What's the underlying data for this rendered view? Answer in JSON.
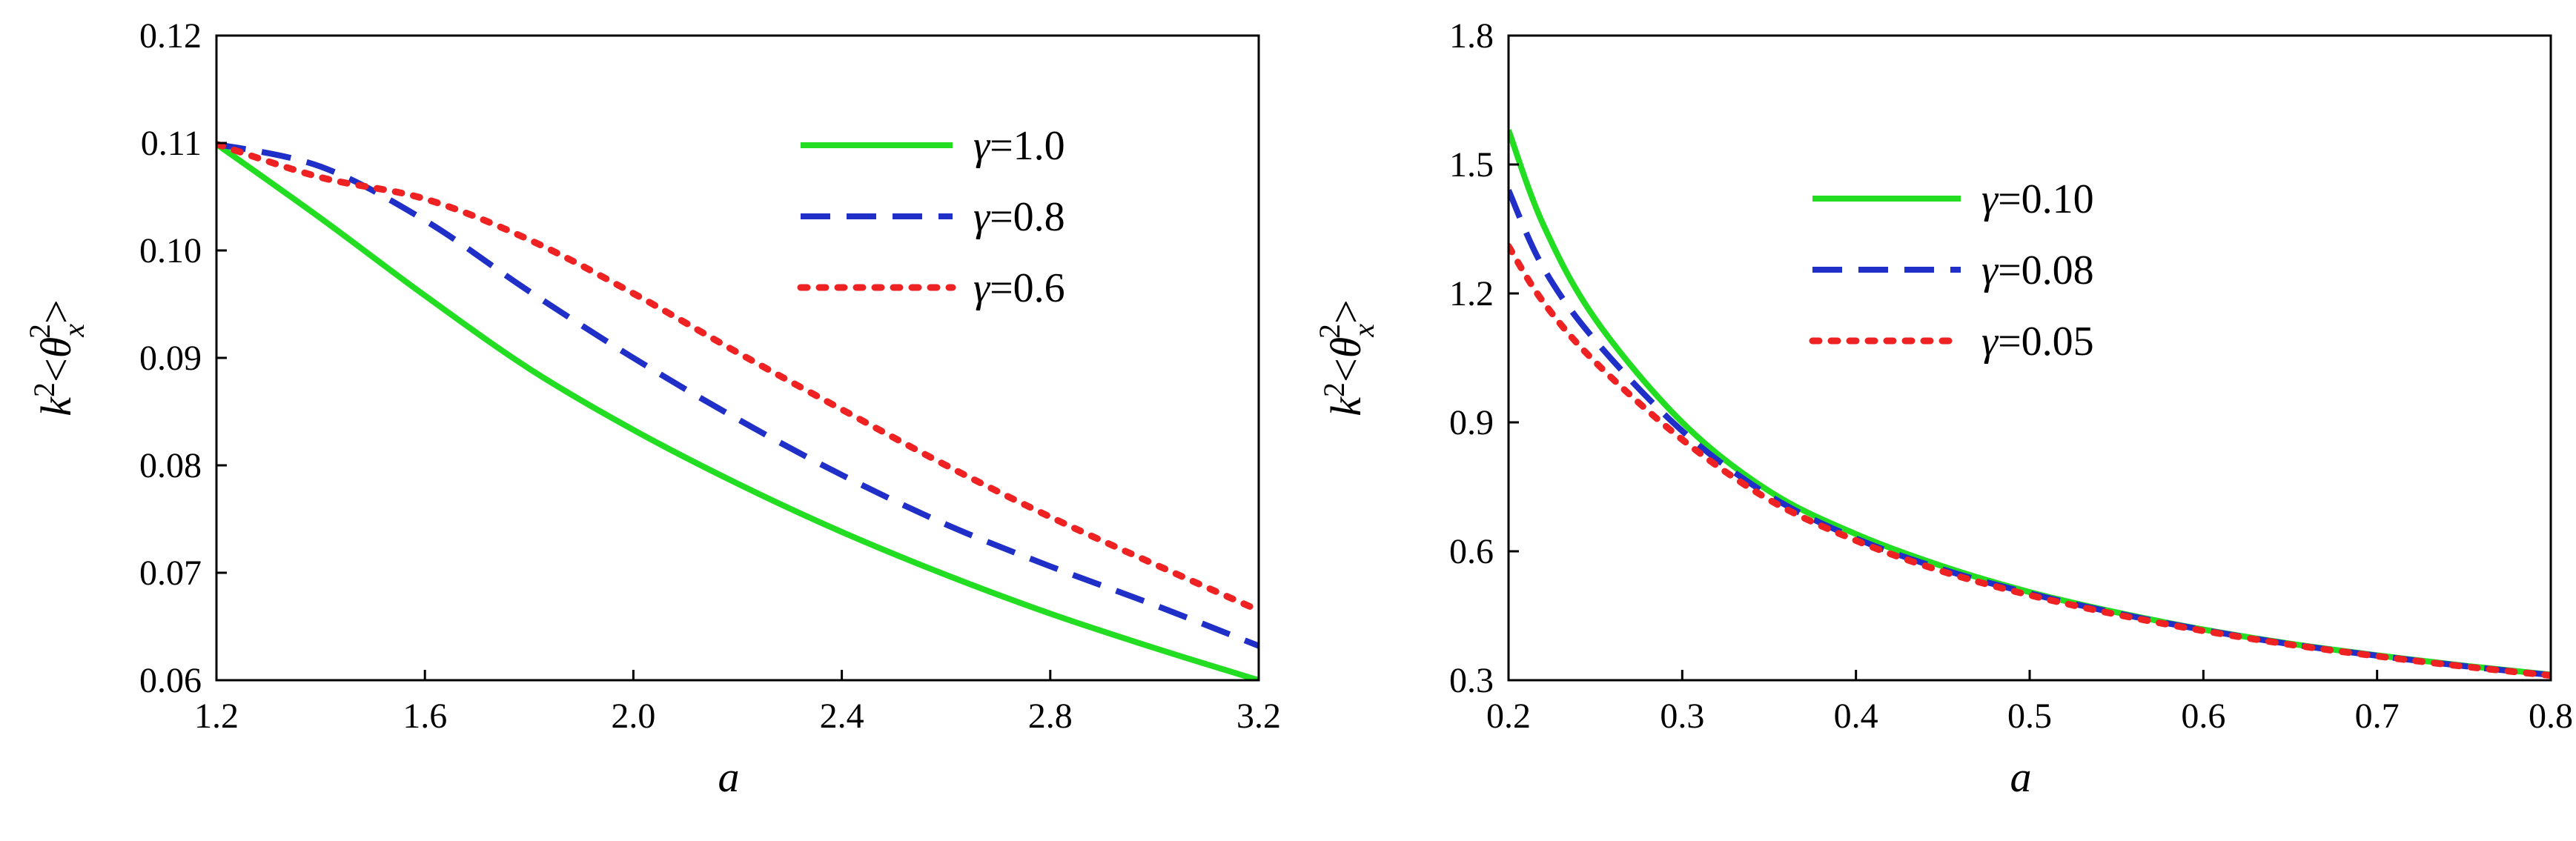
{
  "chart_data": [
    {
      "type": "line",
      "title": "",
      "xlabel": "a",
      "ylabel": {
        "base": "k",
        "sup1": "2",
        "open": "<",
        "theta": "θ",
        "sub": "x",
        "sup2": "2",
        "close": ">"
      },
      "xlim": [
        1.2,
        3.2
      ],
      "ylim": [
        0.06,
        0.12
      ],
      "xticks": [
        1.2,
        1.6,
        2.0,
        2.4,
        2.8,
        3.2
      ],
      "xtick_labels": [
        "1.2",
        "1.6",
        "2.0",
        "2.4",
        "2.8",
        "3.2"
      ],
      "yticks": [
        0.06,
        0.07,
        0.08,
        0.09,
        0.1,
        0.11,
        0.12
      ],
      "ytick_labels": [
        "0.06",
        "0.07",
        "0.08",
        "0.09",
        "0.10",
        "0.11",
        "0.12"
      ],
      "grid": false,
      "legend_position": "top-right",
      "x": [
        1.2,
        1.4,
        1.6,
        1.8,
        2.0,
        2.2,
        2.4,
        2.6,
        2.8,
        3.0,
        3.2
      ],
      "series": [
        {
          "name": "γ=1.0",
          "symbol": "γ",
          "value_label": "=1.0",
          "color": "#22dd22",
          "style": "solid",
          "values": [
            0.1099,
            0.103,
            0.0958,
            0.089,
            0.0833,
            0.0783,
            0.0738,
            0.0698,
            0.0662,
            0.063,
            0.06
          ]
        },
        {
          "name": "γ=0.8",
          "symbol": "γ",
          "value_label": "=0.8",
          "color": "#1f2fc8",
          "style": "dashed",
          "values": [
            0.1099,
            0.1078,
            0.1028,
            0.0962,
            0.09,
            0.0843,
            0.0791,
            0.0745,
            0.0706,
            0.067,
            0.0632
          ]
        },
        {
          "name": "γ=0.6",
          "symbol": "γ",
          "value_label": "=0.6",
          "color": "#ee2222",
          "style": "dotted",
          "values": [
            0.1099,
            0.1068,
            0.1048,
            0.101,
            0.096,
            0.0905,
            0.0852,
            0.08,
            0.0752,
            0.0708,
            0.0665
          ]
        }
      ]
    },
    {
      "type": "line",
      "title": "",
      "xlabel": "a",
      "ylabel": {
        "base": "k",
        "sup1": "2",
        "open": "<",
        "theta": "θ",
        "sub": "x",
        "sup2": "2",
        "close": ">"
      },
      "xlim": [
        0.2,
        0.8
      ],
      "ylim": [
        0.3,
        1.8
      ],
      "xticks": [
        0.2,
        0.3,
        0.4,
        0.5,
        0.6,
        0.7,
        0.8
      ],
      "xtick_labels": [
        "0.2",
        "0.3",
        "0.4",
        "0.5",
        "0.6",
        "0.7",
        "0.8"
      ],
      "yticks": [
        0.3,
        0.6,
        0.9,
        1.2,
        1.5,
        1.8
      ],
      "ytick_labels": [
        "0.3",
        "0.6",
        "0.9",
        "1.2",
        "1.5",
        "1.8"
      ],
      "grid": false,
      "legend_position": "top-center",
      "x": [
        0.2,
        0.22,
        0.25,
        0.3,
        0.35,
        0.4,
        0.45,
        0.5,
        0.55,
        0.6,
        0.65,
        0.7,
        0.75,
        0.8
      ],
      "series": [
        {
          "name": "γ=0.10",
          "symbol": "γ",
          "value_label": "=0.10",
          "color": "#22dd22",
          "style": "solid",
          "values": [
            1.58,
            1.36,
            1.14,
            0.9,
            0.74,
            0.64,
            0.565,
            0.505,
            0.458,
            0.418,
            0.385,
            0.358,
            0.334,
            0.313
          ]
        },
        {
          "name": "γ=0.08",
          "symbol": "γ",
          "value_label": "=0.08",
          "color": "#1f2fc8",
          "style": "dashed",
          "values": [
            1.44,
            1.26,
            1.09,
            0.88,
            0.73,
            0.63,
            0.558,
            0.502,
            0.456,
            0.417,
            0.384,
            0.357,
            0.333,
            0.312
          ]
        },
        {
          "name": "γ=0.05",
          "symbol": "γ",
          "value_label": "=0.05",
          "color": "#ee2222",
          "style": "dotted",
          "values": [
            1.31,
            1.18,
            1.04,
            0.86,
            0.72,
            0.625,
            0.553,
            0.498,
            0.453,
            0.415,
            0.383,
            0.356,
            0.332,
            0.311
          ]
        }
      ]
    }
  ]
}
